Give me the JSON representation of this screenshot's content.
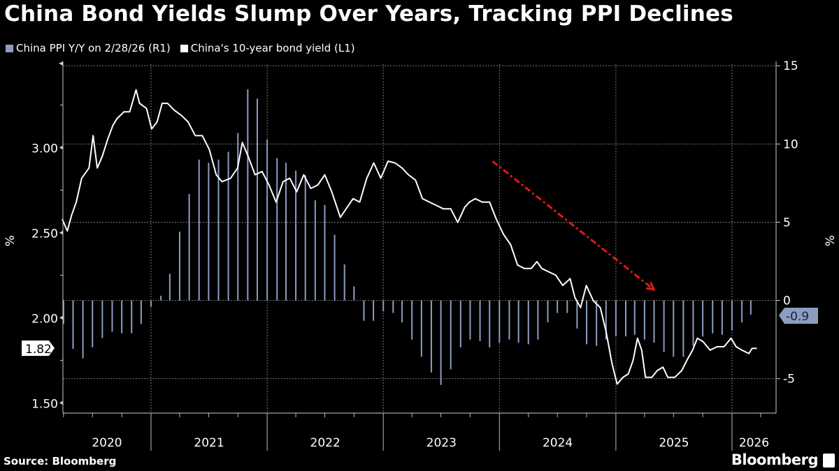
{
  "title": "China Bond Yields Slump Over Years, Tracking PPI Declines",
  "legend": [
    {
      "label": "China PPI Y/Y on 2/28/26 (R1)",
      "color": "#8d9dc2"
    },
    {
      "label": "China's 10-year bond yield (L1)",
      "color": "#ffffff"
    }
  ],
  "footer": {
    "source": "Source: Bloomberg",
    "brand": "Bloomberg"
  },
  "chart_data": {
    "type": "bar+line",
    "title": "China Bond Yields Slump Over Years, Tracking PPI Declines",
    "left_axis": {
      "label": "%",
      "ticks": [
        "3.00",
        "2.50",
        "2.00",
        "1.50"
      ],
      "ylim": [
        1.44,
        3.49
      ]
    },
    "right_axis": {
      "label": "%",
      "ticks": [
        "15",
        "10",
        "5",
        "0",
        "-5"
      ],
      "ylim": [
        -7.2,
        15.1
      ]
    },
    "x_axis": {
      "ticks": [
        "2020",
        "2021",
        "2022",
        "2023",
        "2024",
        "2025",
        "2026"
      ],
      "xlim": [
        "2020-03-28",
        "2026-04-15"
      ]
    },
    "grid": true,
    "legend_position": "top-left",
    "callouts": {
      "left_last": "1.82",
      "right_last": "-0.9"
    },
    "annotation": {
      "type": "red dashed arrow",
      "color": "#e0191c",
      "from": [
        "2023-12-10",
        8.9
      ],
      "to": [
        "2025-04-30",
        0.7
      ]
    },
    "series": [
      {
        "name": "China PPI Y/Y on 2/28/26 (R1)",
        "type": "bar",
        "axis": "right",
        "color": "#8d9dc2",
        "months": [
          "2020-03",
          "2020-04",
          "2020-05",
          "2020-06",
          "2020-07",
          "2020-08",
          "2020-09",
          "2020-10",
          "2020-11",
          "2020-12",
          "2021-01",
          "2021-02",
          "2021-03",
          "2021-04",
          "2021-05",
          "2021-06",
          "2021-07",
          "2021-08",
          "2021-09",
          "2021-10",
          "2021-11",
          "2021-12",
          "2022-01",
          "2022-02",
          "2022-03",
          "2022-04",
          "2022-05",
          "2022-06",
          "2022-07",
          "2022-08",
          "2022-09",
          "2022-10",
          "2022-11",
          "2022-12",
          "2023-01",
          "2023-02",
          "2023-03",
          "2023-04",
          "2023-05",
          "2023-06",
          "2023-07",
          "2023-08",
          "2023-09",
          "2023-10",
          "2023-11",
          "2023-12",
          "2024-01",
          "2024-02",
          "2024-03",
          "2024-04",
          "2024-05",
          "2024-06",
          "2024-07",
          "2024-08",
          "2024-09",
          "2024-10",
          "2024-11",
          "2024-12",
          "2025-01",
          "2025-02",
          "2025-03",
          "2025-04",
          "2025-05",
          "2025-06",
          "2025-07",
          "2025-08",
          "2025-09",
          "2025-10",
          "2025-11",
          "2025-12",
          "2026-01",
          "2026-02"
        ],
        "values": [
          -1.5,
          -3.1,
          -3.7,
          -3.0,
          -2.4,
          -2.0,
          -2.1,
          -2.1,
          -1.5,
          -0.4,
          0.3,
          1.7,
          4.4,
          6.8,
          9.0,
          8.8,
          9.0,
          9.5,
          10.7,
          13.5,
          12.9,
          10.3,
          9.1,
          8.8,
          8.3,
          8.0,
          6.4,
          6.1,
          4.2,
          2.3,
          0.9,
          -1.3,
          -1.3,
          -0.7,
          -0.8,
          -1.4,
          -2.5,
          -3.6,
          -4.6,
          -5.4,
          -4.4,
          -3.0,
          -2.5,
          -2.6,
          -3.0,
          -2.7,
          -2.5,
          -2.7,
          -2.8,
          -2.5,
          -1.4,
          -0.8,
          -0.8,
          -1.8,
          -2.8,
          -2.9,
          -2.5,
          -2.3,
          -2.3,
          -2.2,
          -2.5,
          -2.7,
          -3.3,
          -3.6,
          -3.6,
          -2.9,
          -2.3,
          -2.1,
          -2.2,
          -1.9,
          -1.4,
          -0.9
        ]
      },
      {
        "name": "China's 10-year bond yield (L1)",
        "type": "line",
        "axis": "left",
        "color": "#ffffff",
        "dates": [
          "2020-03-28",
          "2020-04-13",
          "2020-04-26",
          "2020-05-11",
          "2020-05-28",
          "2020-06-20",
          "2020-07-03",
          "2020-07-16",
          "2020-08-01",
          "2020-08-18",
          "2020-09-03",
          "2020-09-16",
          "2020-10-08",
          "2020-10-26",
          "2020-11-15",
          "2020-11-26",
          "2020-12-18",
          "2021-01-03",
          "2021-01-20",
          "2021-02-05",
          "2021-02-22",
          "2021-03-15",
          "2021-04-06",
          "2021-04-28",
          "2021-05-20",
          "2021-06-11",
          "2021-07-03",
          "2021-07-25",
          "2021-08-12",
          "2021-09-08",
          "2021-09-30",
          "2021-10-15",
          "2021-11-02",
          "2021-11-24",
          "2021-12-16",
          "2022-01-07",
          "2022-01-29",
          "2022-02-20",
          "2022-03-13",
          "2022-04-04",
          "2022-04-26",
          "2022-05-18",
          "2022-06-09",
          "2022-07-01",
          "2022-07-23",
          "2022-08-19",
          "2022-09-06",
          "2022-09-28",
          "2022-10-19",
          "2022-11-10",
          "2022-12-02",
          "2022-12-24",
          "2023-01-16",
          "2023-02-07",
          "2023-03-01",
          "2023-03-21",
          "2023-04-12",
          "2023-05-04",
          "2023-05-26",
          "2023-06-17",
          "2023-07-09",
          "2023-08-01",
          "2023-08-23",
          "2023-09-14",
          "2023-09-29",
          "2023-10-17",
          "2023-11-08",
          "2023-12-01",
          "2023-12-22",
          "2024-01-14",
          "2024-02-05",
          "2024-02-27",
          "2024-03-19",
          "2024-04-10",
          "2024-04-28",
          "2024-05-13",
          "2024-06-04",
          "2024-06-26",
          "2024-07-18",
          "2024-08-10",
          "2024-08-25",
          "2024-09-12",
          "2024-09-30",
          "2024-10-22",
          "2024-11-13",
          "2024-12-01",
          "2024-12-20",
          "2025-01-05",
          "2025-01-23",
          "2025-02-09",
          "2025-02-24",
          "2025-03-10",
          "2025-03-23",
          "2025-04-04",
          "2025-04-24",
          "2025-05-11",
          "2025-05-29",
          "2025-06-13",
          "2025-07-05",
          "2025-07-27",
          "2025-08-12",
          "2025-08-30",
          "2025-09-14",
          "2025-10-02",
          "2025-10-24",
          "2025-11-15",
          "2025-12-07",
          "2025-12-29",
          "2026-01-14",
          "2026-02-01",
          "2026-02-23",
          "2026-03-05",
          "2026-03-20"
        ],
        "values": [
          2.58,
          2.51,
          2.6,
          2.68,
          2.82,
          2.88,
          3.07,
          2.88,
          2.95,
          3.05,
          3.13,
          3.17,
          3.21,
          3.21,
          3.34,
          3.26,
          3.23,
          3.11,
          3.15,
          3.26,
          3.26,
          3.22,
          3.19,
          3.15,
          3.07,
          3.07,
          2.99,
          2.84,
          2.8,
          2.82,
          2.88,
          3.03,
          2.95,
          2.84,
          2.86,
          2.78,
          2.68,
          2.8,
          2.82,
          2.74,
          2.84,
          2.76,
          2.78,
          2.84,
          2.74,
          2.59,
          2.64,
          2.7,
          2.68,
          2.82,
          2.91,
          2.82,
          2.92,
          2.91,
          2.88,
          2.84,
          2.81,
          2.7,
          2.68,
          2.66,
          2.64,
          2.64,
          2.56,
          2.65,
          2.68,
          2.7,
          2.68,
          2.68,
          2.58,
          2.49,
          2.43,
          2.31,
          2.29,
          2.29,
          2.33,
          2.29,
          2.27,
          2.25,
          2.19,
          2.23,
          2.12,
          2.06,
          2.19,
          2.1,
          2.06,
          1.92,
          1.73,
          1.61,
          1.65,
          1.67,
          1.75,
          1.88,
          1.81,
          1.65,
          1.65,
          1.69,
          1.71,
          1.65,
          1.65,
          1.69,
          1.75,
          1.81,
          1.88,
          1.86,
          1.81,
          1.83,
          1.83,
          1.88,
          1.83,
          1.81,
          1.79,
          1.82,
          1.82
        ]
      }
    ]
  }
}
